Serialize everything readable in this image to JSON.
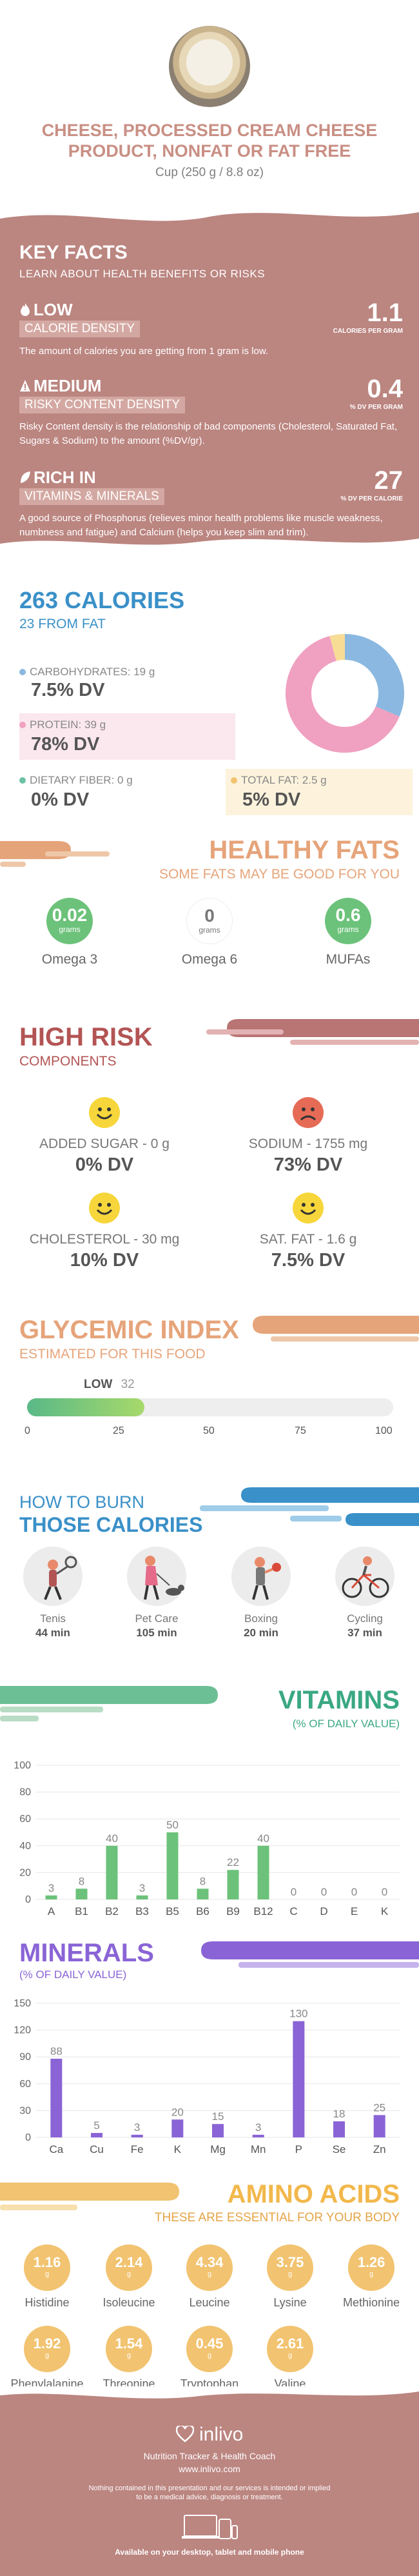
{
  "header": {
    "title_line1": "CHEESE, PROCESSED CREAM CHEESE",
    "title_line2": "PRODUCT, NONFAT OR FAT FREE",
    "serving": "Cup (250 g / 8.8 oz)"
  },
  "key_facts": {
    "title": "KEY FACTS",
    "subtitle": "LEARN ABOUT HEALTH BENEFITS OR RISKS",
    "items": [
      {
        "level": "LOW",
        "label": "CALORIE DENSITY",
        "value": "1.1",
        "unit": "CALORIES PER GRAM",
        "desc": "The amount of calories you are getting from 1 gram is low."
      },
      {
        "level": "MEDIUM",
        "label": "RISKY CONTENT DENSITY",
        "value": "0.4",
        "unit": "% DV PER GRAM",
        "desc": "Risky Content density is the relationship of bad components (Cholesterol, Saturated Fat, Sugars & Sodium) to the amount (%DV/gr)."
      },
      {
        "level": "RICH  IN",
        "label": "VITAMINS & MINERALS",
        "value": "27",
        "unit": "% DV PER CALORIE",
        "desc": "A good source of Phosphorus (relieves minor health problems like muscle weakness, numbness and fatigue) and Calcium (helps you keep slim and trim)."
      }
    ]
  },
  "calories": {
    "title": "263 CALORIES",
    "subtitle": "23 FROM FAT",
    "carbs": {
      "label": "CARBOHYDRATES: 19 g",
      "dv": "7.5% DV"
    },
    "protein": {
      "label": "PROTEIN: 39 g",
      "dv": "78% DV"
    },
    "fiber": {
      "label": "DIETARY FIBER: 0 g",
      "dv": "0% DV"
    },
    "fat": {
      "label": "TOTAL FAT: 2.5 g",
      "dv": "5% DV"
    },
    "donut": [
      {
        "name": "carbohydrates",
        "value": 19,
        "color": "#8bb8e0"
      },
      {
        "name": "protein",
        "value": 39,
        "color": "#f0a0c0"
      },
      {
        "name": "fat",
        "value": 2.5,
        "color": "#f7dc96"
      }
    ]
  },
  "healthy_fats": {
    "title": "HEALTHY FATS",
    "subtitle": "SOME FATS MAY BE GOOD FOR YOU",
    "items": [
      {
        "value": "0.02",
        "unit": "grams",
        "label": "Omega 3",
        "color": "#6cc27a"
      },
      {
        "value": "0",
        "unit": "grams",
        "label": "Omega 6",
        "color": "#ffffff"
      },
      {
        "value": "0.6",
        "unit": "grams",
        "label": "MUFAs",
        "color": "#6cc27a"
      }
    ]
  },
  "high_risk": {
    "title": "HIGH RISK",
    "subtitle": "COMPONENTS",
    "items": [
      {
        "label": "ADDED SUGAR - 0 g",
        "dv": "0% DV",
        "mood": "happy"
      },
      {
        "label": "SODIUM - 1755 mg",
        "dv": "73% DV",
        "mood": "sad"
      },
      {
        "label": "CHOLESTEROL - 30 mg",
        "dv": "10% DV",
        "mood": "happy"
      },
      {
        "label": "SAT. FAT - 1.6 g",
        "dv": "7.5% DV",
        "mood": "happy"
      }
    ]
  },
  "glycemic": {
    "title": "GLYCEMIC INDEX",
    "subtitle": "ESTIMATED FOR THIS FOOD",
    "level": "LOW",
    "value": "32",
    "fill": 0.32,
    "ticks": [
      "0",
      "25",
      "50",
      "75",
      "100"
    ]
  },
  "burn": {
    "title1": "HOW TO BURN",
    "title2": "THOSE CALORIES",
    "items": [
      {
        "label": "Tenis",
        "time": "44 min",
        "icon": "tennis-icon"
      },
      {
        "label": "Pet Care",
        "time": "105 min",
        "icon": "dog-walking-icon"
      },
      {
        "label": "Boxing",
        "time": "20 min",
        "icon": "boxing-icon"
      },
      {
        "label": "Cycling",
        "time": "37 min",
        "icon": "cycling-icon"
      }
    ]
  },
  "vitamins": {
    "title": "VITAMINS",
    "subtitle": "(% OF DAILY VALUE)"
  },
  "minerals": {
    "title": "MINERALS",
    "subtitle": "(% OF DAILY VALUE)"
  },
  "chart_data": [
    {
      "type": "bar",
      "title": "VITAMINS",
      "categories": [
        "A",
        "B1",
        "B2",
        "B3",
        "B5",
        "B6",
        "B9",
        "B12",
        "C",
        "D",
        "E",
        "K"
      ],
      "values": [
        3,
        8,
        40,
        3,
        50,
        8,
        22,
        40,
        0,
        0,
        0,
        0
      ],
      "yticks": [
        0,
        20,
        40,
        60,
        80,
        100
      ],
      "ylim": [
        0,
        100
      ],
      "color": "#6cc27a",
      "grid": true
    },
    {
      "type": "bar",
      "title": "MINERALS",
      "categories": [
        "Ca",
        "Cu",
        "Fe",
        "K",
        "Mg",
        "Mn",
        "P",
        "Se",
        "Zn"
      ],
      "values": [
        88,
        5,
        3,
        20,
        15,
        3,
        130,
        18,
        25
      ],
      "yticks": [
        0,
        30,
        60,
        90,
        120,
        150
      ],
      "ylim": [
        0,
        150
      ],
      "color": "#8a64d6",
      "grid": true
    }
  ],
  "amino": {
    "title": "AMINO ACIDS",
    "subtitle": "THESE ARE ESSENTIAL FOR YOUR BODY",
    "items": [
      {
        "value": "1.16",
        "unit": "g",
        "label": "Histidine"
      },
      {
        "value": "2.14",
        "unit": "g",
        "label": "Isoleucine"
      },
      {
        "value": "4.34",
        "unit": "g",
        "label": "Leucine"
      },
      {
        "value": "3.75",
        "unit": "g",
        "label": "Lysine"
      },
      {
        "value": "1.26",
        "unit": "g",
        "label": "Methionine"
      },
      {
        "value": "1.92",
        "unit": "g",
        "label": "Phenylalanine"
      },
      {
        "value": "1.54",
        "unit": "g",
        "label": "Threonine"
      },
      {
        "value": "0.45",
        "unit": "g",
        "label": "Tryptophan"
      },
      {
        "value": "2.61",
        "unit": "g",
        "label": "Valine"
      }
    ]
  },
  "footer": {
    "brand": "inlivo",
    "tagline": "Nutrition Tracker & Health Coach",
    "url": "www.inlivo.com",
    "disclaimer1": "Nothing contained in this presentation and our services is intended or implied",
    "disclaimer2": "to be a medical advice, diagnosis or treatment.",
    "available": "Available on your desktop, tablet and mobile phone"
  },
  "colors": {
    "brand": "#bb8580",
    "blue": "#3a90c8",
    "orange": "#e6a47a",
    "red": "#b35454",
    "green": "#6cc27a",
    "purple": "#8a64d6",
    "gold": "#f2c370"
  }
}
